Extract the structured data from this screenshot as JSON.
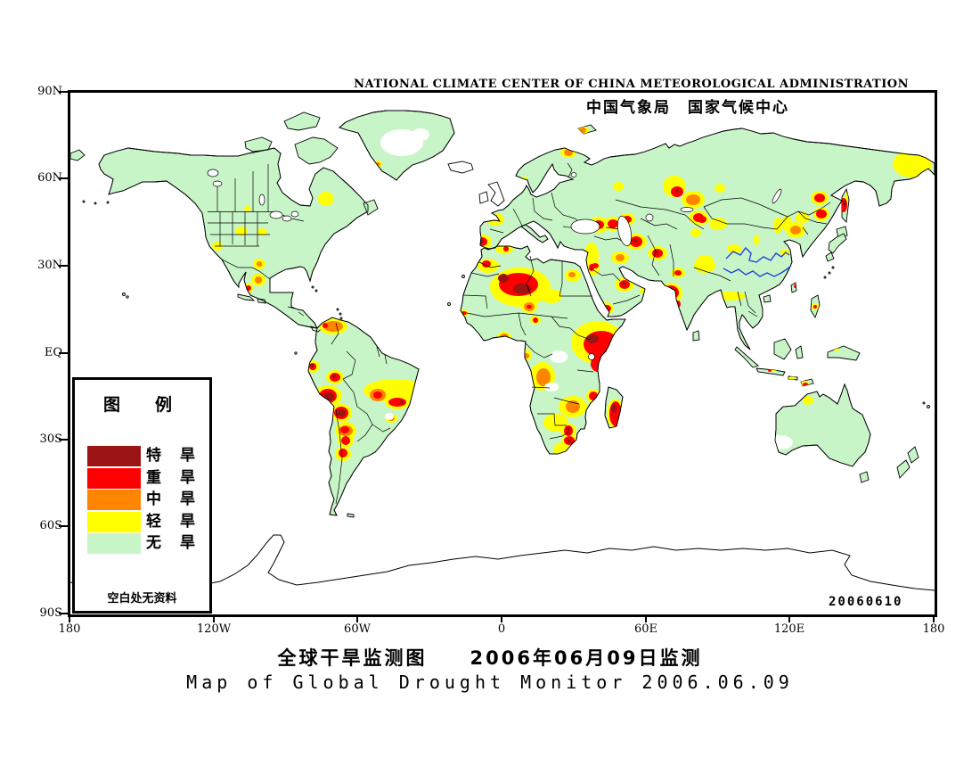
{
  "header": {
    "org_en": "NATIONAL CLIMATE CENTER OF CHINA METEOROLOGICAL ADMINISTRATION",
    "org_cn": "中国气象局　国家气候中心"
  },
  "titles": {
    "cn": "全球干旱监测图　　2006年06月09日监测",
    "en": "Map of Global Drought Monitor 2006.06.09"
  },
  "datestamp": "20060610",
  "axes": {
    "lat": [
      "90N",
      "60N",
      "30N",
      "EQ",
      "30S",
      "60S",
      "90S"
    ],
    "lon": [
      "180",
      "120W",
      "60W",
      "0",
      "60E",
      "120E",
      "180"
    ]
  },
  "legend": {
    "title": "图　例",
    "items": [
      {
        "label": "特　旱",
        "level": "extreme",
        "color": "#9B1414"
      },
      {
        "label": "重　旱",
        "level": "severe",
        "color": "#FF0000"
      },
      {
        "label": "中　旱",
        "level": "moderate",
        "color": "#FF8400"
      },
      {
        "label": "轻　旱",
        "level": "light",
        "color": "#FFFF00"
      },
      {
        "label": "无　旱",
        "level": "none",
        "color": "#C8F5C8"
      }
    ],
    "footnote": "空白处无资料"
  },
  "map": {
    "colors": {
      "ocean": "#FFFFFF",
      "none": "#C8F5C8",
      "light": "#FFFF00",
      "moderate": "#FF8400",
      "severe": "#FF0000",
      "extreme": "#9B1414",
      "no_data": "#FFFFFF",
      "border": "#000000",
      "river": "#2244DD"
    },
    "drought_spots": {
      "light": [
        [
          463,
          167,
          10,
          8
        ],
        [
          469,
          194,
          12,
          8
        ],
        [
          487,
          175,
          10,
          6
        ],
        [
          477,
          142,
          10,
          7
        ],
        [
          509,
          97,
          4,
          3
        ],
        [
          559,
          67,
          9,
          6
        ],
        [
          575,
          42,
          7,
          4
        ],
        [
          615,
          105,
          6,
          5
        ],
        [
          505,
          218,
          34,
          22
        ],
        [
          540,
          228,
          12,
          8
        ],
        [
          515,
          240,
          9,
          7
        ],
        [
          522,
          255,
          6,
          5
        ],
        [
          442,
          247,
          5,
          4
        ],
        [
          425,
          237,
          3,
          2
        ],
        [
          487,
          274,
          8,
          6
        ],
        [
          513,
          294,
          5,
          6
        ],
        [
          564,
          205,
          9,
          7
        ],
        [
          587,
          195,
          7,
          10
        ],
        [
          592,
          280,
          30,
          24
        ],
        [
          530,
          318,
          14,
          16
        ],
        [
          564,
          352,
          16,
          12
        ],
        [
          587,
          340,
          8,
          8
        ],
        [
          559,
          379,
          9,
          8
        ],
        [
          560,
          390,
          8,
          7
        ],
        [
          552,
          400,
          10,
          8
        ],
        [
          545,
          370,
          14,
          10
        ],
        [
          612,
          360,
          10,
          17
        ],
        [
          593,
          148,
          12,
          9
        ],
        [
          609,
          147,
          10,
          8
        ],
        [
          625,
          142,
          9,
          7
        ],
        [
          635,
          167,
          12,
          9
        ],
        [
          617,
          185,
          10,
          7
        ],
        [
          585,
          182,
          8,
          14
        ],
        [
          622,
          215,
          11,
          8
        ],
        [
          602,
          242,
          8,
          7
        ],
        [
          645,
          222,
          6,
          4
        ],
        [
          659,
          180,
          11,
          8
        ],
        [
          674,
          225,
          13,
          12
        ],
        [
          682,
          202,
          8,
          6
        ],
        [
          712,
          194,
          12,
          8
        ],
        [
          740,
          228,
          18,
          5
        ],
        [
          712,
          189,
          10,
          7
        ],
        [
          745,
          175,
          8,
          5
        ],
        [
          770,
          165,
          3,
          6
        ],
        [
          802,
          179,
          5,
          4
        ],
        [
          702,
          157,
          6,
          5
        ],
        [
          705,
          140,
          11,
          8
        ],
        [
          678,
          105,
          13,
          12
        ],
        [
          699,
          120,
          13,
          10
        ],
        [
          709,
          142,
          8,
          6
        ],
        [
          727,
          147,
          10,
          7
        ],
        [
          729,
          107,
          6,
          5
        ],
        [
          794,
          149,
          5,
          9
        ],
        [
          804,
          146,
          6,
          8
        ],
        [
          822,
          140,
          8,
          6
        ],
        [
          814,
          154,
          11,
          9
        ],
        [
          841,
          118,
          10,
          8
        ],
        [
          843,
          136,
          9,
          8
        ],
        [
          871,
          120,
          2,
          8
        ],
        [
          945,
          80,
          22,
          15
        ],
        [
          955,
          97,
          8,
          6
        ],
        [
          25,
          84,
          5,
          3
        ],
        [
          199,
          130,
          4,
          3
        ],
        [
          287,
          119,
          9,
          8
        ],
        [
          192,
          155,
          7,
          5
        ],
        [
          215,
          156,
          6,
          4
        ],
        [
          165,
          172,
          6,
          5
        ],
        [
          212,
          192,
          7,
          6
        ],
        [
          211,
          210,
          8,
          7
        ],
        [
          200,
          219,
          5,
          6
        ],
        [
          345,
          80,
          5,
          4
        ],
        [
          60,
          226,
          3,
          2
        ],
        [
          295,
          262,
          16,
          9
        ],
        [
          272,
          307,
          8,
          7
        ],
        [
          297,
          319,
          10,
          8
        ],
        [
          289,
          340,
          16,
          12
        ],
        [
          304,
          359,
          12,
          10
        ],
        [
          309,
          379,
          12,
          10
        ],
        [
          309,
          390,
          9,
          8
        ],
        [
          306,
          405,
          9,
          8
        ],
        [
          365,
          334,
          36,
          13
        ],
        [
          367,
          347,
          14,
          8
        ],
        [
          360,
          365,
          7,
          5
        ],
        [
          828,
          345,
          6,
          5
        ],
        [
          823,
          326,
          6,
          3
        ],
        [
          788,
          311,
          5,
          2
        ],
        [
          810,
          320,
          4,
          2
        ],
        [
          860,
          288,
          3,
          2
        ],
        [
          836,
          240,
          4,
          4
        ],
        [
          964,
          352,
          3,
          2
        ]
      ],
      "moderate": [
        [
          559,
          67,
          5,
          4
        ],
        [
          575,
          42,
          4,
          3
        ],
        [
          515,
          240,
          6,
          5
        ],
        [
          487,
          274,
          5,
          4
        ],
        [
          512,
          295,
          3,
          3
        ],
        [
          563,
          204,
          4,
          3
        ],
        [
          531,
          319,
          8,
          10
        ],
        [
          564,
          352,
          8,
          7
        ],
        [
          617,
          185,
          5,
          4
        ],
        [
          699,
          120,
          8,
          6
        ],
        [
          814,
          154,
          6,
          5
        ],
        [
          212,
          192,
          3,
          3
        ],
        [
          211,
          210,
          4,
          4
        ],
        [
          345,
          80,
          3,
          2
        ],
        [
          295,
          262,
          11,
          6
        ],
        [
          309,
          379,
          8,
          6
        ],
        [
          345,
          339,
          9,
          7
        ],
        [
          360,
          365,
          4,
          3
        ]
      ],
      "severe": [
        [
          462,
          167,
          6,
          5
        ],
        [
          467,
          192,
          5,
          4
        ],
        [
          489,
          175,
          3,
          3
        ],
        [
          503,
          215,
          22,
          13
        ],
        [
          515,
          240,
          3,
          2
        ],
        [
          522,
          255,
          3,
          3
        ],
        [
          442,
          247,
          3,
          2
        ],
        [
          441,
          206,
          2,
          2
        ],
        [
          585,
          196,
          3,
          4
        ],
        [
          596,
          282,
          20,
          15
        ],
        [
          592,
          304,
          8,
          9
        ],
        [
          587,
          340,
          5,
          5
        ],
        [
          559,
          379,
          5,
          6
        ],
        [
          560,
          390,
          6,
          5
        ],
        [
          612,
          360,
          7,
          14
        ],
        [
          593,
          148,
          6,
          5
        ],
        [
          609,
          147,
          6,
          5
        ],
        [
          625,
          142,
          5,
          4
        ],
        [
          635,
          167,
          7,
          6
        ],
        [
          589,
          194,
          4,
          3
        ],
        [
          622,
          215,
          6,
          5
        ],
        [
          602,
          242,
          5,
          4
        ],
        [
          659,
          180,
          6,
          5
        ],
        [
          674,
          224,
          9,
          8
        ],
        [
          682,
          202,
          4,
          3
        ],
        [
          682,
          237,
          3,
          4
        ],
        [
          705,
          140,
          6,
          5
        ],
        [
          681,
          111,
          7,
          6
        ],
        [
          709,
          142,
          5,
          4
        ],
        [
          841,
          118,
          6,
          5
        ],
        [
          843,
          136,
          6,
          5
        ],
        [
          868,
          126,
          4,
          8
        ],
        [
          200,
          219,
          3,
          3
        ],
        [
          286,
          261,
          3,
          3
        ],
        [
          272,
          307,
          4,
          4
        ],
        [
          297,
          319,
          6,
          5
        ],
        [
          289,
          340,
          10,
          8
        ],
        [
          304,
          359,
          8,
          7
        ],
        [
          308,
          378,
          5,
          4
        ],
        [
          309,
          390,
          5,
          5
        ],
        [
          306,
          404,
          5,
          5
        ],
        [
          345,
          339,
          5,
          4
        ],
        [
          367,
          347,
          10,
          5
        ],
        [
          825,
          327,
          3,
          2
        ],
        [
          785,
          311,
          2,
          2
        ],
        [
          836,
          240,
          2,
          2
        ],
        [
          814,
          217,
          2,
          2
        ]
      ],
      "extreme": [
        [
          461,
          167,
          3,
          3
        ],
        [
          507,
          220,
          10,
          6
        ],
        [
          486,
          208,
          6,
          5
        ],
        [
          586,
          276,
          7,
          5
        ],
        [
          559,
          377,
          2,
          2
        ],
        [
          560,
          391,
          2,
          2
        ],
        [
          610,
          354,
          3,
          5
        ],
        [
          592,
          147,
          2,
          2
        ],
        [
          634,
          166,
          3,
          2
        ],
        [
          621,
          214,
          2,
          2
        ],
        [
          658,
          179,
          2,
          2
        ],
        [
          673,
          222,
          4,
          4
        ],
        [
          681,
          110,
          2,
          2
        ],
        [
          869,
          124,
          2,
          4
        ],
        [
          271,
          306,
          2,
          2
        ],
        [
          296,
          318,
          2,
          2
        ],
        [
          290,
          341,
          6,
          5
        ],
        [
          304,
          359,
          5,
          4
        ],
        [
          372,
          347,
          2,
          2
        ]
      ]
    },
    "no_data_patches": [
      [
        372,
        56,
        24,
        15
      ],
      [
        393,
        47,
        10,
        7
      ],
      [
        548,
        296,
        10,
        7
      ],
      [
        540,
        330,
        8,
        5
      ],
      [
        797,
        392,
        14,
        8
      ],
      [
        358,
        363,
        5,
        4
      ]
    ]
  }
}
